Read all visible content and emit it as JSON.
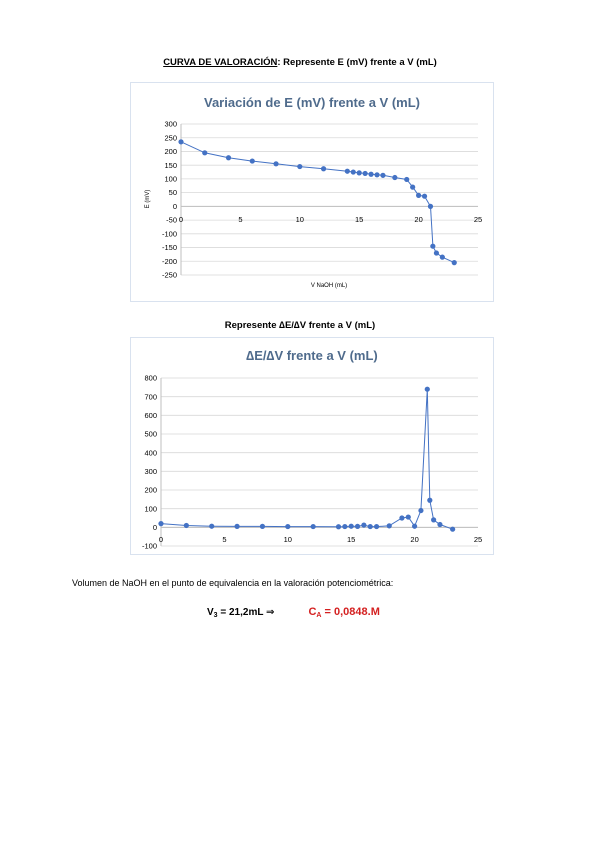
{
  "heading1": {
    "underlined": "CURVA DE VALORACIÓN",
    "rest": ": Represente E (mV) frente a V (mL)"
  },
  "heading2": "Represente ∆E/∆V frente a V (mL)",
  "question": "Volumen de NaOH en el punto de equivalencia en la valoración potenciométrica:",
  "answer": {
    "v_symbol": "V",
    "v_sub": "3",
    "v_value": " = 21,2mL ",
    "arrow": "⇒",
    "c_symbol": "C",
    "c_sub": "A",
    "c_value": " = 0,0848.M"
  },
  "chart_data": [
    {
      "type": "scatter",
      "title": "Variación de E (mV) frente a V (mL)",
      "xlabel": "V NaOH (mL)",
      "ylabel": "E (mV)",
      "xlim": [
        0,
        25
      ],
      "ylim": [
        -250,
        300
      ],
      "xticks": [
        0,
        5,
        10,
        15,
        20,
        25
      ],
      "yticks": [
        300,
        250,
        200,
        150,
        100,
        50,
        0,
        -50,
        -100,
        -150,
        -200,
        -250
      ],
      "grid": true,
      "color": "#4472c4",
      "x": [
        0,
        2,
        4,
        6,
        8,
        10,
        12,
        14,
        14.5,
        15,
        15.5,
        16,
        16.5,
        17,
        18,
        19,
        19.5,
        20,
        20.5,
        21,
        21.2,
        21.5,
        22,
        23
      ],
      "y": [
        235,
        195,
        177,
        165,
        155,
        145,
        137,
        128,
        125,
        122,
        120,
        117,
        115,
        113,
        105,
        98,
        70,
        40,
        37,
        0,
        -145,
        -170,
        -185,
        -205
      ]
    },
    {
      "type": "scatter",
      "title": "∆E/∆V  frente a V (mL)",
      "xlabel": "",
      "ylabel": "",
      "xlim": [
        0,
        25
      ],
      "ylim": [
        -100,
        800
      ],
      "xticks": [
        0,
        5,
        10,
        15,
        20,
        25
      ],
      "yticks": [
        800,
        700,
        600,
        500,
        400,
        300,
        200,
        100,
        0,
        -100
      ],
      "grid": true,
      "color": "#4472c4",
      "x": [
        0,
        2,
        4,
        6,
        8,
        10,
        12,
        14,
        14.5,
        15,
        15.5,
        16,
        16.5,
        17,
        18,
        19,
        19.5,
        20,
        20.5,
        21,
        21.2,
        21.5,
        22,
        23
      ],
      "y": [
        20,
        10,
        6,
        5,
        5,
        4,
        4,
        3,
        4,
        6,
        5,
        12,
        4,
        4,
        8,
        50,
        55,
        6,
        90,
        740,
        145,
        40,
        15,
        -10
      ]
    }
  ]
}
